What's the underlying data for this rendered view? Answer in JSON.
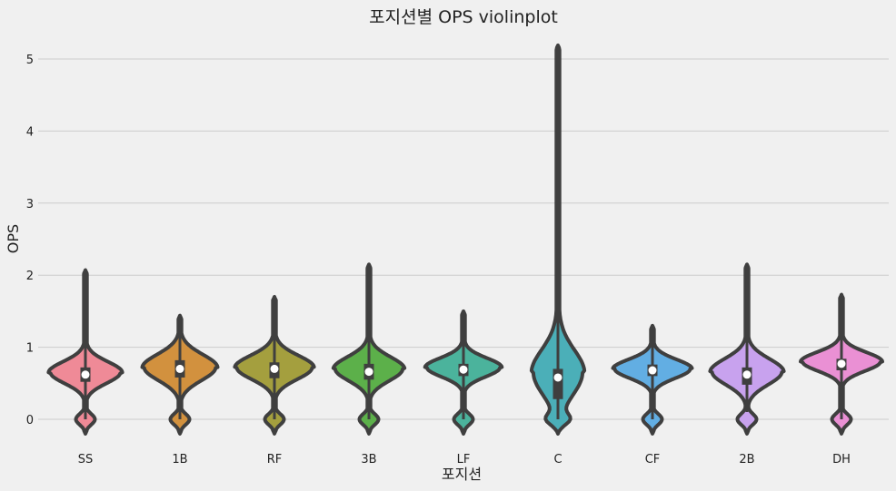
{
  "chart_data": {
    "type": "violin",
    "title": "포지션별 OPS violinplot",
    "xlabel": "포지션",
    "ylabel": "OPS",
    "ylim": [
      -0.3,
      5.35
    ],
    "yticks": [
      0,
      1,
      2,
      3,
      4,
      5
    ],
    "grid": "horizontal",
    "categories": [
      "SS",
      "1B",
      "RF",
      "3B",
      "LF",
      "C",
      "CF",
      "2B",
      "DH"
    ],
    "colors": [
      "#ef8a97",
      "#d2913e",
      "#a49f3e",
      "#5cb04a",
      "#4bb39c",
      "#4bafb8",
      "#62aee3",
      "#c8a2ee",
      "#ea90d4"
    ],
    "series": [
      {
        "min": 0.0,
        "max": 2.05,
        "q1": 0.52,
        "median": 0.62,
        "q3": 0.72,
        "mode": 0.65,
        "modeWidth": 0.88
      },
      {
        "min": 0.0,
        "max": 1.42,
        "q1": 0.58,
        "median": 0.7,
        "q3": 0.82,
        "mode": 0.72,
        "modeWidth": 0.9
      },
      {
        "min": 0.0,
        "max": 1.68,
        "q1": 0.57,
        "median": 0.7,
        "q3": 0.79,
        "mode": 0.72,
        "modeWidth": 0.95
      },
      {
        "min": 0.0,
        "max": 2.13,
        "q1": 0.55,
        "median": 0.66,
        "q3": 0.77,
        "mode": 0.7,
        "modeWidth": 0.85
      },
      {
        "min": 0.0,
        "max": 1.48,
        "q1": 0.6,
        "median": 0.69,
        "q3": 0.77,
        "mode": 0.72,
        "modeWidth": 0.92
      },
      {
        "min": 0.0,
        "max": 5.17,
        "q1": 0.28,
        "median": 0.58,
        "q3": 0.7,
        "mode": 0.65,
        "modeWidth": 0.62
      },
      {
        "min": 0.0,
        "max": 1.28,
        "q1": 0.6,
        "median": 0.68,
        "q3": 0.76,
        "mode": 0.7,
        "modeWidth": 0.95
      },
      {
        "min": 0.1,
        "max": 2.13,
        "q1": 0.48,
        "median": 0.62,
        "q3": 0.72,
        "mode": 0.66,
        "modeWidth": 0.88
      },
      {
        "min": 0.0,
        "max": 1.71,
        "q1": 0.68,
        "median": 0.77,
        "q3": 0.84,
        "mode": 0.8,
        "modeWidth": 0.98
      }
    ]
  }
}
